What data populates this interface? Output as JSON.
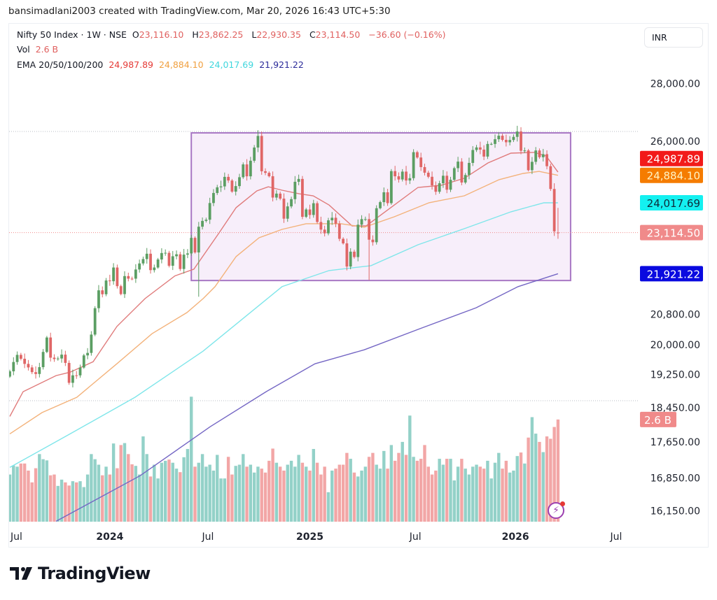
{
  "credit": "bansimadlani2003 created with TradingView.com, Mar 20, 2026 16:43 UTC+5:30",
  "legend": {
    "symbol": "Nifty 50 Index · 1W · NSE",
    "o_label": "O",
    "o": "23,116.10",
    "h_label": "H",
    "h": "23,862.25",
    "l_label": "L",
    "l": "22,930.35",
    "c_label": "C",
    "c": "23,114.50",
    "change": "−36.60 (−0.16%)",
    "vol_label": "Vol",
    "vol": "2.6 B",
    "ema_label": "EMA 20/50/100/200",
    "ema20": "24,987.89",
    "ema50": "24,884.10",
    "ema100": "24,017.69",
    "ema200": "21,921.22"
  },
  "currency": "INR",
  "brand": "TradingView",
  "colors": {
    "up": "#5b9e63",
    "down": "#e06666",
    "vol_up": "#93d1c8",
    "vol_down": "#f2a6a6",
    "ema20": "#e07b7b",
    "ema50": "#f3b27a",
    "ema100": "#7fe6ea",
    "ema200": "#7466c4",
    "box_fill": "#f7eefa",
    "box_stroke": "#a877c4"
  },
  "chart_data": {
    "type": "candlestick",
    "title": "Nifty 50 Index · 1W · NSE",
    "scale": "log",
    "interval": "1W",
    "closes": [
      19331,
      19564,
      19745,
      19646,
      19517,
      19428,
      19310,
      19265,
      19435,
      19820,
      20192,
      19674,
      19638,
      19653,
      19751,
      19542,
      19047,
      19231,
      19230,
      19425,
      19732,
      19795,
      20268,
      20969,
      21457,
      21349,
      21731,
      21710,
      22097,
      21572,
      21353,
      21854,
      21783,
      21782,
      22041,
      22213,
      22339,
      22493,
      22023,
      22097,
      22327,
      22513,
      22519,
      22147,
      22420,
      22476,
      22055,
      22466,
      22502,
      22957,
      22531,
      23290,
      23465,
      23501,
      24011,
      24324,
      24502,
      24531,
      24834,
      24718,
      24367,
      24541,
      24823,
      25236,
      24852,
      25356,
      25791,
      26179,
      25014,
      24964,
      24854,
      24181,
      24304,
      24148,
      23532,
      23907,
      24131,
      24677,
      24768,
      23588,
      23813,
      23645,
      24005,
      23432,
      23203,
      23092,
      23482,
      23560,
      23381,
      22929,
      22795,
      22125,
      22553,
      22397,
      23350,
      23519,
      23519,
      22904,
      22829,
      23851,
      24039,
      24346,
      24008,
      25019,
      24853,
      24751,
      25003,
      24718,
      24793,
      25637,
      25461,
      25149,
      24968,
      24837,
      24565,
      24363,
      24631,
      24870,
      24427,
      24741,
      25114,
      25327,
      24654,
      24894,
      25285,
      25709,
      25795,
      25722,
      25492,
      25910,
      25910,
      26068,
      26186,
      26047,
      25966,
      26042,
      26147,
      26328,
      25683,
      25694,
      25049,
      25320,
      25694,
      25471,
      25571,
      25178,
      24450,
      23151.1,
      23114.5
    ],
    "candle_overrides": {
      "51": {
        "low": 21281
      },
      "97": {
        "low": 21743
      },
      "148": {
        "open": 23116.1,
        "high": 23862.25,
        "low": 22930.35
      }
    },
    "volume_billions": [
      1.2,
      1.43,
      1.4,
      1.48,
      1.48,
      1.3,
      1.0,
      1.36,
      1.72,
      1.59,
      1.56,
      1.18,
      1.2,
      0.91,
      1.07,
      1.0,
      0.92,
      1.03,
      1.0,
      1.03,
      0.88,
      1.2,
      1.72,
      1.59,
      1.45,
      1.18,
      1.4,
      1.2,
      1.99,
      1.36,
      1.95,
      2.0,
      1.72,
      1.46,
      1.42,
      1.2,
      2.17,
      1.72,
      1.15,
      1.45,
      1.1,
      1.5,
      1.55,
      1.58,
      1.5,
      1.35,
      1.26,
      1.64,
      1.85,
      3.18,
      1.4,
      1.5,
      1.72,
      1.4,
      1.45,
      1.3,
      1.7,
      1.1,
      1.1,
      1.65,
      1.2,
      1.42,
      1.45,
      1.72,
      1.4,
      1.45,
      1.25,
      1.4,
      1.35,
      1.25,
      1.55,
      1.86,
      1.5,
      1.4,
      1.3,
      1.45,
      1.55,
      1.4,
      1.7,
      1.5,
      1.4,
      1.3,
      1.85,
      1.5,
      1.2,
      1.4,
      0.75,
      1.3,
      1.35,
      1.45,
      1.45,
      1.75,
      1.6,
      1.25,
      1.15,
      1.3,
      1.4,
      1.65,
      1.75,
      1.45,
      1.35,
      1.8,
      1.35,
      1.95,
      1.55,
      1.75,
      2.03,
      1.7,
      2.7,
      1.65,
      1.55,
      1.6,
      1.95,
      1.4,
      1.2,
      1.3,
      1.6,
      1.45,
      1.6,
      1.6,
      1.05,
      1.4,
      1.6,
      1.35,
      1.2,
      1.4,
      1.45,
      1.4,
      1.35,
      1.55,
      1.1,
      1.5,
      1.75,
      1.35,
      1.55,
      1.25,
      1.3,
      1.67,
      1.76,
      1.48,
      2.14,
      2.66,
      2.24,
      2.03,
      1.77,
      2.17,
      2.11,
      2.41,
      2.6
    ],
    "ema": [
      {
        "name": "EMA 20",
        "key": "ema20",
        "last": 24987.89,
        "points": [
          [
            0,
            18240
          ],
          [
            3.6,
            18830
          ],
          [
            12.5,
            19225
          ],
          [
            16.3,
            19310
          ],
          [
            22.5,
            19570
          ],
          [
            28.9,
            20480
          ],
          [
            36.5,
            21230
          ],
          [
            44.6,
            21860
          ],
          [
            49.7,
            22050
          ],
          [
            56.5,
            23105
          ],
          [
            61.1,
            23870
          ],
          [
            66.7,
            24390
          ],
          [
            69.8,
            24520
          ],
          [
            73.5,
            24410
          ],
          [
            78.1,
            24300
          ],
          [
            81.9,
            24235
          ],
          [
            86.2,
            23950
          ],
          [
            92.4,
            23315
          ],
          [
            96.2,
            23315
          ],
          [
            103.8,
            23950
          ],
          [
            110.2,
            24500
          ],
          [
            116.4,
            24565
          ],
          [
            122.7,
            24790
          ],
          [
            129.1,
            25285
          ],
          [
            135.3,
            25605
          ],
          [
            141.6,
            25630
          ],
          [
            144.8,
            25510
          ],
          [
            148,
            24987.89
          ]
        ]
      },
      {
        "name": "EMA 50",
        "key": "ema50",
        "last": 24884.1,
        "points": [
          [
            0,
            17835
          ],
          [
            8.7,
            18330
          ],
          [
            18.1,
            18695
          ],
          [
            28.9,
            19520
          ],
          [
            38.4,
            20290
          ],
          [
            47.8,
            20850
          ],
          [
            52.2,
            21230
          ],
          [
            55.4,
            21560
          ],
          [
            61.1,
            22410
          ],
          [
            67.3,
            22960
          ],
          [
            73.5,
            23210
          ],
          [
            80,
            23380
          ],
          [
            89.4,
            23380
          ],
          [
            95.7,
            23275
          ],
          [
            103.8,
            23590
          ],
          [
            113.2,
            24020
          ],
          [
            122.7,
            24235
          ],
          [
            132.1,
            24745
          ],
          [
            138.6,
            24945
          ],
          [
            142.9,
            25010
          ],
          [
            148,
            24884.1
          ]
        ]
      },
      {
        "name": "EMA 100",
        "key": "ema100",
        "last": 24017.69,
        "points": [
          [
            0,
            17080
          ],
          [
            16.3,
            17835
          ],
          [
            33.8,
            18695
          ],
          [
            52.2,
            19841
          ],
          [
            73.5,
            21560
          ],
          [
            86.2,
            22010
          ],
          [
            97.5,
            22150
          ],
          [
            110.2,
            22755
          ],
          [
            122.7,
            23230
          ],
          [
            135.3,
            23740
          ],
          [
            144.2,
            24020
          ],
          [
            148,
            24017.69
          ]
        ]
      },
      {
        "name": "EMA 200",
        "key": "ema200",
        "last": 21921.22,
        "points": [
          [
            12.5,
            15935
          ],
          [
            35.2,
            16900
          ],
          [
            54.1,
            18000
          ],
          [
            69.2,
            18830
          ],
          [
            82.4,
            19520
          ],
          [
            95.7,
            19875
          ],
          [
            110.8,
            20425
          ],
          [
            125.9,
            20980
          ],
          [
            137.2,
            21560
          ],
          [
            148,
            21921.22
          ]
        ]
      }
    ],
    "rectangle": {
      "from_week": 49,
      "to_week": 151.4,
      "low": 21730,
      "high": 26282
    },
    "price_ticks": [
      {
        "v": 28000,
        "label": "28,000.00"
      },
      {
        "v": 26000,
        "label": "26,000.00"
      },
      {
        "v": 20800,
        "label": "20,800.00"
      },
      {
        "v": 20000,
        "label": "20,000.00"
      },
      {
        "v": 19250,
        "label": "19,250.00"
      },
      {
        "v": 18450,
        "label": "18,450.00"
      },
      {
        "v": 17650,
        "label": "17,650.00"
      },
      {
        "v": 16850,
        "label": "16,850.00"
      },
      {
        "v": 16150,
        "label": "16,150.00"
      }
    ],
    "price_badges": [
      {
        "v": 24987.89,
        "label": "24,987.89",
        "bg": "#f21a1a",
        "fg": "#ffffff"
      },
      {
        "v": 24884.1,
        "label": "24,884.10",
        "bg": "#f57c00",
        "fg": "#fff3c4"
      },
      {
        "v": 24017.69,
        "label": "24,017.69",
        "bg": "#14f0f0",
        "fg": "#0d2b3a"
      },
      {
        "v": 23114.5,
        "label": "23,114.50",
        "bg": "#f08a8a",
        "fg": "#ffffff"
      },
      {
        "v": 21921.22,
        "label": "21,921.22",
        "bg": "#0a0ae0",
        "fg": "#ffffff"
      }
    ],
    "volume_badge": {
      "v": 2.6,
      "label": "2.6 B",
      "bg": "#f08a8a",
      "fg": "#ffffff"
    },
    "last_price": 23114.5,
    "time_ticks": [
      {
        "w": 0.2,
        "label": "Jul"
      },
      {
        "w": 27,
        "label": "2024"
      },
      {
        "w": 53.5,
        "label": "Jul"
      },
      {
        "w": 81,
        "label": "2025"
      },
      {
        "w": 109.5,
        "label": "Jul"
      },
      {
        "w": 136.5,
        "label": "2026"
      },
      {
        "w": 163.7,
        "label": "Jul"
      }
    ]
  }
}
